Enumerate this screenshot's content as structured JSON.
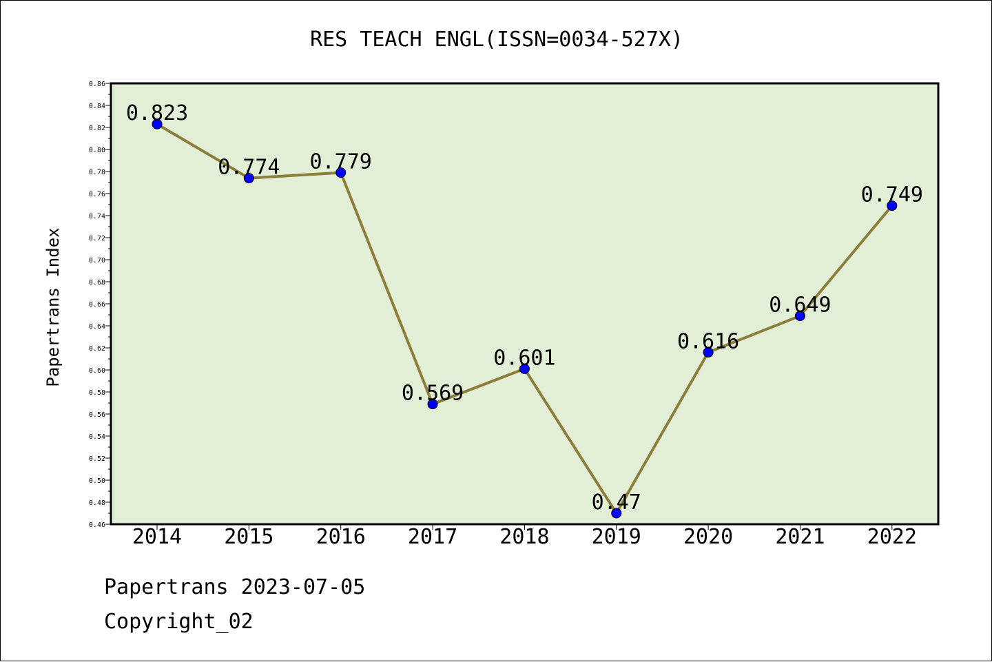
{
  "chart_data": {
    "type": "line",
    "title": "RES TEACH ENGL(ISSN=0034-527X)",
    "xlabel": "",
    "ylabel": "Papertrans Index",
    "categories": [
      "2014",
      "2015",
      "2016",
      "2017",
      "2018",
      "2019",
      "2020",
      "2021",
      "2022"
    ],
    "series": [
      {
        "values": [
          0.823,
          0.774,
          0.779,
          0.569,
          0.601,
          0.47,
          0.616,
          0.649,
          0.749
        ]
      }
    ],
    "data_labels": [
      "0.823",
      "0.774",
      "0.779",
      "0.569",
      "0.601",
      "0.47",
      "0.616",
      "0.649",
      "0.749"
    ],
    "ylim": [
      0.46,
      0.86
    ],
    "yticks": [
      "0.46",
      "0.48",
      "0.50",
      "0.52",
      "0.54",
      "0.56",
      "0.58",
      "0.60",
      "0.62",
      "0.64",
      "0.66",
      "0.68",
      "0.70",
      "0.72",
      "0.74",
      "0.76",
      "0.78",
      "0.80",
      "0.82",
      "0.84",
      "0.86"
    ],
    "grid": false,
    "colors": {
      "plot_background": "#e2efd6",
      "line": "#8b7d3a",
      "marker": "#0000ff"
    }
  },
  "footer": {
    "date_line": "Papertrans 2023-07-05",
    "copyright": "Copyright_02"
  }
}
